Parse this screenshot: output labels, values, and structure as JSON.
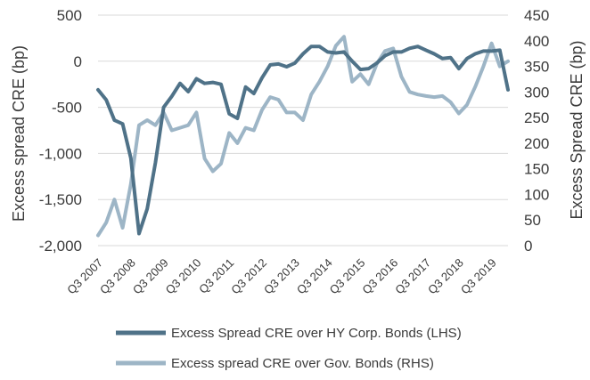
{
  "chart_data": {
    "type": "line",
    "title": "",
    "ylabel_left": "Excess spread CRE (bp)",
    "ylabel_right": "Excess Spread CRE (bp)",
    "ylim_left": [
      -2000,
      500
    ],
    "yticks_left": [
      "500",
      "0",
      "-500",
      "-1,000",
      "-1,500",
      "-2,000"
    ],
    "ylim_right": [
      0,
      450
    ],
    "yticks_right": [
      "450",
      "400",
      "350",
      "300",
      "250",
      "200",
      "150",
      "100",
      "50",
      "0"
    ],
    "xticks": [
      "Q3 2007",
      "Q3 2008",
      "Q3 2009",
      "Q3 2010",
      "Q3 2011",
      "Q3 2012",
      "Q3 2013",
      "Q3 2014",
      "Q3 2015",
      "Q3 2016",
      "Q3 2017",
      "Q3 2018",
      "Q3 2019"
    ],
    "x": [
      "Q3 2007",
      "Q4 2007",
      "Q1 2008",
      "Q2 2008",
      "Q3 2008",
      "Q4 2008",
      "Q1 2009",
      "Q2 2009",
      "Q3 2009",
      "Q4 2009",
      "Q1 2010",
      "Q2 2010",
      "Q3 2010",
      "Q4 2010",
      "Q1 2011",
      "Q2 2011",
      "Q3 2011",
      "Q4 2011",
      "Q1 2012",
      "Q2 2012",
      "Q3 2012",
      "Q4 2012",
      "Q1 2013",
      "Q2 2013",
      "Q3 2013",
      "Q4 2013",
      "Q1 2014",
      "Q2 2014",
      "Q3 2014",
      "Q4 2014",
      "Q1 2015",
      "Q2 2015",
      "Q3 2015",
      "Q4 2015",
      "Q1 2016",
      "Q2 2016",
      "Q3 2016",
      "Q4 2016",
      "Q1 2017",
      "Q2 2017",
      "Q3 2017",
      "Q4 2017",
      "Q1 2018",
      "Q2 2018",
      "Q3 2018",
      "Q4 2018",
      "Q1 2019",
      "Q2 2019",
      "Q3 2019",
      "Q4 2019",
      "Q1 2020"
    ],
    "legend_position": "bottom",
    "series": [
      {
        "name": "Excess Spread CRE over HY Corp. Bonds (LHS)",
        "axis": "left",
        "color": "#4f7288",
        "values": [
          -310,
          -420,
          -640,
          -680,
          -1050,
          -1870,
          -1600,
          -1100,
          -500,
          -380,
          -240,
          -330,
          -190,
          -240,
          -230,
          -250,
          -570,
          -620,
          -280,
          -350,
          -180,
          -40,
          -30,
          -60,
          -20,
          80,
          160,
          160,
          100,
          90,
          100,
          0,
          -90,
          -80,
          -20,
          60,
          100,
          100,
          140,
          160,
          120,
          80,
          30,
          40,
          -80,
          30,
          80,
          110,
          110,
          120,
          -310
        ]
      },
      {
        "name": "Excess spread CRE over Gov. Bonds (RHS)",
        "axis": "right",
        "color": "#9db5c6",
        "values": [
          20,
          45,
          90,
          35,
          120,
          235,
          245,
          235,
          260,
          225,
          230,
          235,
          260,
          170,
          145,
          160,
          220,
          200,
          230,
          225,
          265,
          290,
          285,
          260,
          260,
          245,
          295,
          320,
          350,
          390,
          408,
          320,
          335,
          315,
          355,
          380,
          385,
          330,
          300,
          295,
          292,
          290,
          292,
          280,
          258,
          275,
          310,
          350,
          395,
          350,
          360
        ]
      }
    ]
  }
}
